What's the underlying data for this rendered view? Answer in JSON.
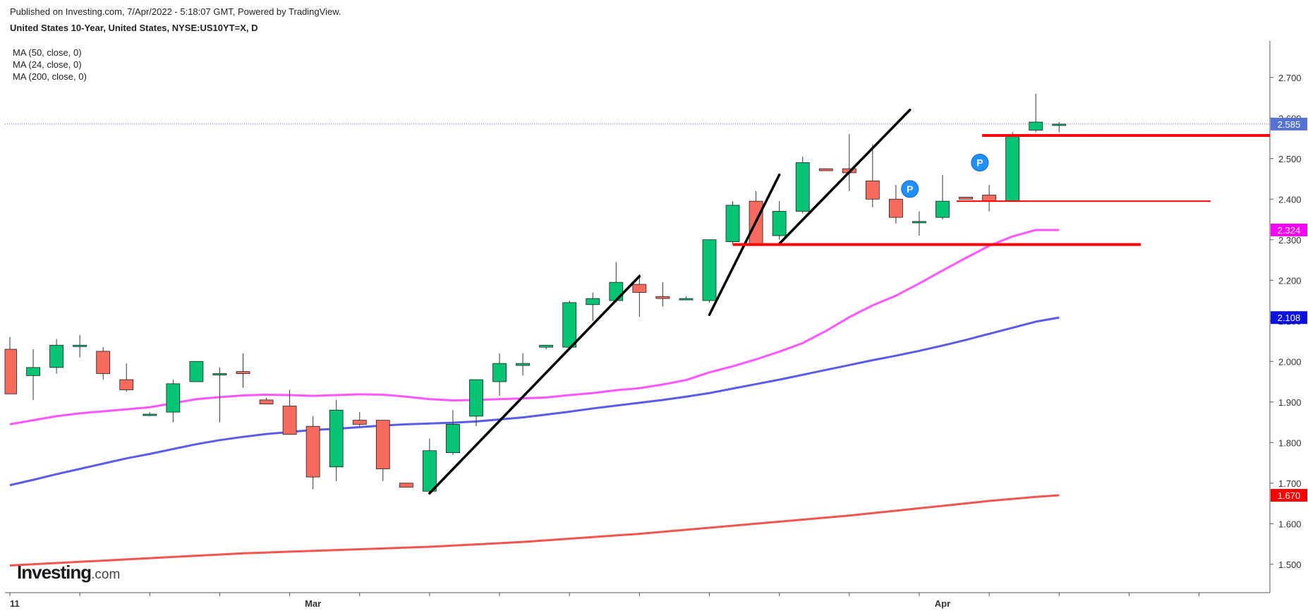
{
  "header": {
    "published": "Published on Investing.com, 7/Apr/2022 - 5:18:07 GMT, Powered by TradingView.",
    "symbol": "United States 10-Year, United States, NYSE:US10YT=X, D"
  },
  "indicators": [
    {
      "label": "MA (50, close, 0)",
      "color": "#5b5bea"
    },
    {
      "label": "MA (24, close, 0)",
      "color": "#ff55ff"
    },
    {
      "label": "MA (200, close, 0)",
      "color": "#f2544f"
    }
  ],
  "logo": {
    "brand": "Investing",
    "suffix": ".com"
  },
  "chart_data": {
    "type": "candlestick",
    "ylim": [
      1.43,
      2.79
    ],
    "y_ticks": [
      "1.500",
      "1.600",
      "1.700",
      "1.800",
      "1.900",
      "2.000",
      "2.100",
      "2.200",
      "2.300",
      "2.400",
      "2.500",
      "2.600",
      "2.700"
    ],
    "x_tick_labels": [
      {
        "index": 0,
        "label": "11"
      },
      {
        "index": 13,
        "label": "Mar"
      },
      {
        "index": 40,
        "label": "Apr"
      }
    ],
    "colors": {
      "up": "#07c374",
      "down": "#f76a5e",
      "wick": "#2a3a33"
    },
    "candles": [
      {
        "o": 2.03,
        "h": 2.06,
        "l": 1.92,
        "c": 1.92
      },
      {
        "o": 1.965,
        "h": 2.03,
        "l": 1.905,
        "c": 1.985
      },
      {
        "o": 1.985,
        "h": 2.055,
        "l": 1.97,
        "c": 2.04
      },
      {
        "o": 2.04,
        "h": 2.065,
        "l": 2.01,
        "c": 2.04
      },
      {
        "o": 2.025,
        "h": 2.035,
        "l": 1.955,
        "c": 1.97
      },
      {
        "o": 1.955,
        "h": 1.995,
        "l": 1.925,
        "c": 1.93
      },
      {
        "o": 1.87,
        "h": 1.875,
        "l": 1.865,
        "c": 1.87
      },
      {
        "o": 1.875,
        "h": 1.955,
        "l": 1.85,
        "c": 1.945
      },
      {
        "o": 1.95,
        "h": 2.0,
        "l": 1.95,
        "c": 2.0
      },
      {
        "o": 1.97,
        "h": 1.985,
        "l": 1.85,
        "c": 1.97
      },
      {
        "o": 1.975,
        "h": 2.02,
        "l": 1.935,
        "c": 1.97
      },
      {
        "o": 1.905,
        "h": 1.91,
        "l": 1.895,
        "c": 1.895
      },
      {
        "o": 1.89,
        "h": 1.93,
        "l": 1.82,
        "c": 1.82
      },
      {
        "o": 1.84,
        "h": 1.865,
        "l": 1.685,
        "c": 1.715
      },
      {
        "o": 1.74,
        "h": 1.905,
        "l": 1.705,
        "c": 1.88
      },
      {
        "o": 1.855,
        "h": 1.875,
        "l": 1.84,
        "c": 1.845
      },
      {
        "o": 1.855,
        "h": 1.855,
        "l": 1.705,
        "c": 1.735
      },
      {
        "o": 1.7,
        "h": 1.7,
        "l": 1.69,
        "c": 1.69
      },
      {
        "o": 1.68,
        "h": 1.81,
        "l": 1.675,
        "c": 1.78
      },
      {
        "o": 1.775,
        "h": 1.88,
        "l": 1.77,
        "c": 1.845
      },
      {
        "o": 1.865,
        "h": 1.955,
        "l": 1.84,
        "c": 1.955
      },
      {
        "o": 1.95,
        "h": 2.02,
        "l": 1.915,
        "c": 1.995
      },
      {
        "o": 1.99,
        "h": 2.02,
        "l": 1.965,
        "c": 1.995
      },
      {
        "o": 2.035,
        "h": 2.04,
        "l": 2.03,
        "c": 2.04
      },
      {
        "o": 2.035,
        "h": 2.15,
        "l": 2.03,
        "c": 2.145
      },
      {
        "o": 2.14,
        "h": 2.17,
        "l": 2.1,
        "c": 2.155
      },
      {
        "o": 2.15,
        "h": 2.245,
        "l": 2.145,
        "c": 2.195
      },
      {
        "o": 2.19,
        "h": 2.215,
        "l": 2.11,
        "c": 2.17
      },
      {
        "o": 2.16,
        "h": 2.195,
        "l": 2.135,
        "c": 2.155
      },
      {
        "o": 2.155,
        "h": 2.16,
        "l": 2.155,
        "c": 2.155
      },
      {
        "o": 2.15,
        "h": 2.3,
        "l": 2.145,
        "c": 2.3
      },
      {
        "o": 2.295,
        "h": 2.395,
        "l": 2.29,
        "c": 2.385
      },
      {
        "o": 2.395,
        "h": 2.42,
        "l": 2.285,
        "c": 2.29
      },
      {
        "o": 2.31,
        "h": 2.395,
        "l": 2.3,
        "c": 2.37
      },
      {
        "o": 2.37,
        "h": 2.505,
        "l": 2.365,
        "c": 2.49
      },
      {
        "o": 2.475,
        "h": 2.475,
        "l": 2.47,
        "c": 2.47
      },
      {
        "o": 2.475,
        "h": 2.56,
        "l": 2.42,
        "c": 2.465
      },
      {
        "o": 2.445,
        "h": 2.535,
        "l": 2.38,
        "c": 2.4
      },
      {
        "o": 2.4,
        "h": 2.435,
        "l": 2.34,
        "c": 2.355
      },
      {
        "o": 2.345,
        "h": 2.37,
        "l": 2.31,
        "c": 2.345
      },
      {
        "o": 2.355,
        "h": 2.46,
        "l": 2.35,
        "c": 2.395
      },
      {
        "o": 2.405,
        "h": 2.405,
        "l": 2.4,
        "c": 2.4
      },
      {
        "o": 2.41,
        "h": 2.435,
        "l": 2.37,
        "c": 2.395
      },
      {
        "o": 2.395,
        "h": 2.565,
        "l": 2.395,
        "c": 2.555
      },
      {
        "o": 2.57,
        "h": 2.66,
        "l": 2.565,
        "c": 2.59
      },
      {
        "o": 2.585,
        "h": 2.59,
        "l": 2.565,
        "c": 2.585
      }
    ],
    "moving_averages": [
      {
        "name": "MA (24, close, 0)",
        "color": "#ff55ff",
        "values": [
          1.845,
          1.855,
          1.865,
          1.872,
          1.877,
          1.882,
          1.887,
          1.897,
          1.907,
          1.912,
          1.916,
          1.918,
          1.917,
          1.915,
          1.917,
          1.919,
          1.918,
          1.913,
          1.907,
          1.904,
          1.905,
          1.907,
          1.909,
          1.911,
          1.917,
          1.922,
          1.929,
          1.934,
          1.943,
          1.954,
          1.973,
          1.988,
          2.005,
          2.024,
          2.045,
          2.075,
          2.109,
          2.138,
          2.162,
          2.192,
          2.224,
          2.255,
          2.285,
          2.308,
          2.324,
          2.324
        ]
      },
      {
        "name": "MA (50, close, 0)",
        "color": "#5b5bea",
        "values": [
          1.695,
          1.708,
          1.722,
          1.735,
          1.748,
          1.761,
          1.772,
          1.784,
          1.796,
          1.806,
          1.814,
          1.821,
          1.826,
          1.831,
          1.834,
          1.838,
          1.842,
          1.845,
          1.847,
          1.849,
          1.852,
          1.857,
          1.862,
          1.869,
          1.876,
          1.884,
          1.891,
          1.898,
          1.905,
          1.913,
          1.922,
          1.933,
          1.944,
          1.955,
          1.967,
          1.979,
          1.991,
          2.003,
          2.014,
          2.026,
          2.039,
          2.053,
          2.068,
          2.083,
          2.098,
          2.108
        ]
      },
      {
        "name": "MA (200, close, 0)",
        "color": "#f2544f",
        "values": [
          1.497,
          1.5,
          1.503,
          1.506,
          1.509,
          1.512,
          1.515,
          1.518,
          1.521,
          1.524,
          1.527,
          1.529,
          1.531,
          1.533,
          1.535,
          1.537,
          1.539,
          1.541,
          1.543,
          1.546,
          1.549,
          1.552,
          1.555,
          1.559,
          1.563,
          1.567,
          1.571,
          1.575,
          1.58,
          1.585,
          1.59,
          1.595,
          1.6,
          1.605,
          1.61,
          1.615,
          1.62,
          1.626,
          1.632,
          1.638,
          1.644,
          1.65,
          1.656,
          1.661,
          1.666,
          1.67
        ]
      }
    ],
    "last_price": {
      "value": 2.585,
      "label": "2.585",
      "color": "#5472d3"
    },
    "price_labels": [
      {
        "value": 2.324,
        "label": "2.324",
        "color": "#ff00ff"
      },
      {
        "value": 2.108,
        "label": "2.108",
        "color": "#0a11e0"
      },
      {
        "value": 1.67,
        "label": "1.670",
        "color": "#ff0000"
      }
    ],
    "annotations": {
      "trendlines": [
        {
          "from": [
            18,
            1.675
          ],
          "to": [
            27,
            2.21
          ]
        },
        {
          "from": [
            30,
            2.115
          ],
          "to": [
            33,
            2.46
          ]
        },
        {
          "from": [
            33,
            2.29
          ],
          "to": [
            38.6,
            2.62
          ]
        }
      ],
      "horizontal_lines": [
        {
          "from_index": 31,
          "to_index": 48.5,
          "value": 2.288,
          "width": 4
        },
        {
          "from_index": 40.6,
          "to_index": 51.5,
          "value": 2.395,
          "width": 2
        },
        {
          "from_index": 41.7,
          "to_index": 55,
          "value": 2.557,
          "width": 4
        }
      ],
      "markers": [
        {
          "index": 38.6,
          "value": 2.425,
          "text": "P"
        },
        {
          "index": 41.6,
          "value": 2.49,
          "text": "P"
        }
      ]
    }
  }
}
